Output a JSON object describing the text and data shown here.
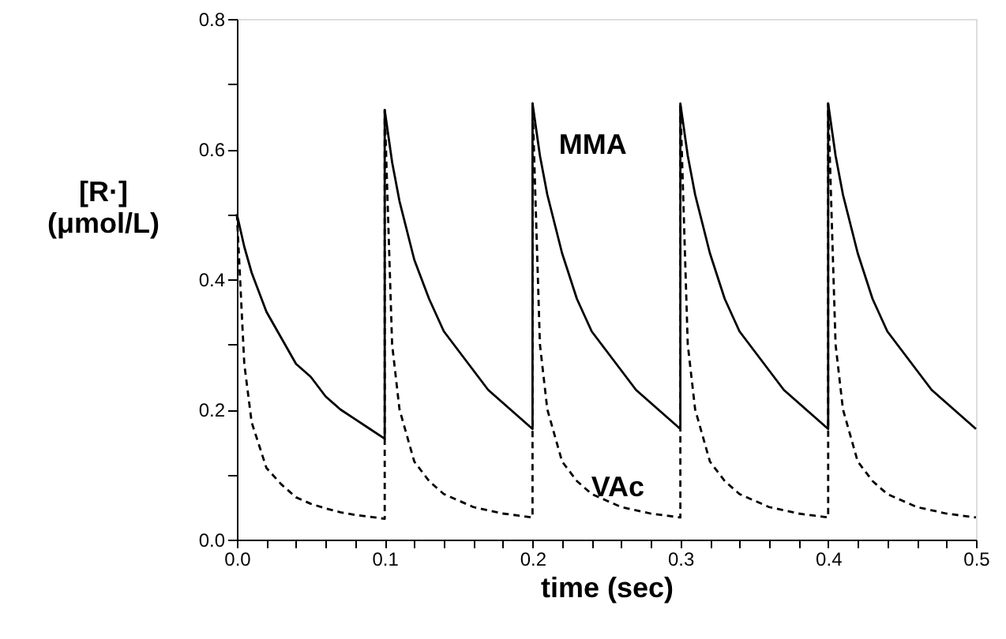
{
  "chart_data": {
    "type": "line",
    "xlabel": "time (sec)",
    "ylabel": "[R·] (μmol/L)",
    "x": [
      0,
      0.005,
      0.01,
      0.02,
      0.03,
      0.04,
      0.05,
      0.06,
      0.07,
      0.08,
      0.09,
      0.1,
      0.1,
      0.105,
      0.11,
      0.12,
      0.13,
      0.14,
      0.15,
      0.16,
      0.17,
      0.18,
      0.19,
      0.2,
      0.2,
      0.205,
      0.21,
      0.22,
      0.23,
      0.24,
      0.25,
      0.26,
      0.27,
      0.28,
      0.29,
      0.3,
      0.3,
      0.305,
      0.31,
      0.32,
      0.33,
      0.34,
      0.35,
      0.36,
      0.37,
      0.38,
      0.39,
      0.4,
      0.4,
      0.405,
      0.41,
      0.42,
      0.43,
      0.44,
      0.45,
      0.46,
      0.47,
      0.48,
      0.49,
      0.5
    ],
    "series": [
      {
        "name": "MMA",
        "color": "#000000",
        "line_style": "solid",
        "values": [
          0.5,
          0.45,
          0.41,
          0.35,
          0.31,
          0.27,
          0.25,
          0.22,
          0.2,
          0.185,
          0.17,
          0.155,
          0.66,
          0.58,
          0.52,
          0.43,
          0.37,
          0.32,
          0.29,
          0.26,
          0.23,
          0.21,
          0.19,
          0.17,
          0.67,
          0.59,
          0.53,
          0.44,
          0.37,
          0.32,
          0.29,
          0.26,
          0.23,
          0.21,
          0.19,
          0.17,
          0.67,
          0.59,
          0.53,
          0.44,
          0.37,
          0.32,
          0.29,
          0.26,
          0.23,
          0.21,
          0.19,
          0.17,
          0.67,
          0.59,
          0.53,
          0.44,
          0.37,
          0.32,
          0.29,
          0.26,
          0.23,
          0.21,
          0.19,
          0.17
        ]
      },
      {
        "name": "VAc",
        "color": "#000000",
        "line_style": "dashed",
        "values": [
          0.5,
          0.27,
          0.18,
          0.11,
          0.085,
          0.065,
          0.055,
          0.048,
          0.042,
          0.038,
          0.035,
          0.032,
          0.66,
          0.3,
          0.2,
          0.12,
          0.09,
          0.07,
          0.06,
          0.05,
          0.045,
          0.04,
          0.037,
          0.034,
          0.67,
          0.3,
          0.2,
          0.12,
          0.09,
          0.07,
          0.06,
          0.05,
          0.045,
          0.04,
          0.037,
          0.034,
          0.67,
          0.3,
          0.2,
          0.12,
          0.09,
          0.07,
          0.06,
          0.05,
          0.045,
          0.04,
          0.037,
          0.034,
          0.67,
          0.3,
          0.2,
          0.12,
          0.09,
          0.07,
          0.06,
          0.05,
          0.045,
          0.04,
          0.037,
          0.034
        ]
      }
    ],
    "xlim": [
      0,
      0.5
    ],
    "xticks": [
      {
        "value": 0,
        "label": "0.0"
      },
      {
        "value": 0.02,
        "label": null
      },
      {
        "value": 0.04,
        "label": null
      },
      {
        "value": 0.06,
        "label": null
      },
      {
        "value": 0.08,
        "label": null
      },
      0.1,
      {
        "value": 0.12,
        "label": null
      },
      {
        "value": 0.14,
        "label": null
      },
      {
        "value": 0.16,
        "label": null
      },
      {
        "value": 0.18,
        "label": null
      },
      0.2,
      {
        "value": 0.22,
        "label": null
      },
      {
        "value": 0.24,
        "label": null
      },
      {
        "value": 0.26,
        "label": null
      },
      {
        "value": 0.28,
        "label": null
      },
      0.3,
      {
        "value": 0.32,
        "label": null
      },
      {
        "value": 0.34,
        "label": null
      },
      {
        "value": 0.36,
        "label": null
      },
      {
        "value": 0.38,
        "label": null
      },
      0.4,
      {
        "value": 0.42,
        "label": null
      },
      {
        "value": 0.44,
        "label": null
      },
      {
        "value": 0.46,
        "label": null
      },
      {
        "value": 0.48,
        "label": null
      },
      0.5
    ],
    "ylim": [
      0,
      0.8
    ],
    "yticks": [
      {
        "value": 0,
        "label": "0.0"
      },
      {
        "value": 0.1,
        "label": null
      },
      0.2,
      {
        "value": 0.3,
        "label": null
      },
      0.4,
      {
        "value": 0.5,
        "label": null
      },
      0.6,
      {
        "value": 0.7,
        "label": null
      },
      0.8
    ],
    "grid": false,
    "marker": "none"
  }
}
